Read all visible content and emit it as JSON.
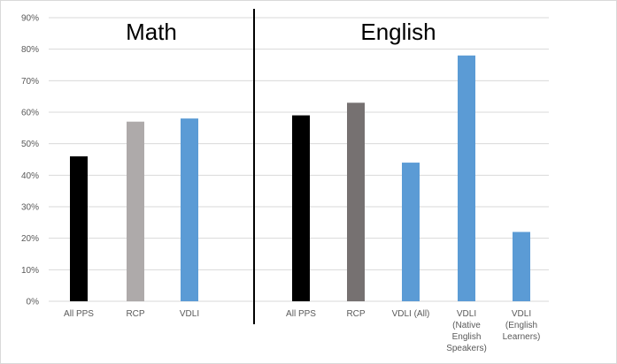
{
  "chart_data": {
    "type": "bar",
    "title": "",
    "xlabel": "",
    "ylabel": "",
    "ylim": [
      0,
      90
    ],
    "y_ticks": [
      "0%",
      "10%",
      "20%",
      "30%",
      "40%",
      "50%",
      "60%",
      "70%",
      "80%",
      "90%"
    ],
    "y_unit": "%",
    "grid": true,
    "legend": "none",
    "panels": [
      {
        "title": "Math"
      },
      {
        "title": "English"
      }
    ],
    "categories": [
      [
        "All PPS"
      ],
      [
        "RCP"
      ],
      [
        "VDLI"
      ],
      [
        "All PPS"
      ],
      [
        "RCP"
      ],
      [
        "VDLI (All)"
      ],
      [
        "VDLI",
        "(Native",
        "English",
        "Speakers)"
      ],
      [
        "VDLI",
        "(English",
        "Learners)"
      ]
    ],
    "panel_of_category": [
      0,
      0,
      0,
      1,
      1,
      1,
      1,
      1
    ],
    "values": [
      46,
      57,
      58,
      59,
      63,
      44,
      78,
      22
    ],
    "colors": [
      "#000000",
      "#aeaaaa",
      "#5b9bd5",
      "#000000",
      "#767171",
      "#5b9bd5",
      "#5b9bd5",
      "#5b9bd5"
    ],
    "gridline_color": "#d9d9d9",
    "divider_color": "#000000"
  }
}
